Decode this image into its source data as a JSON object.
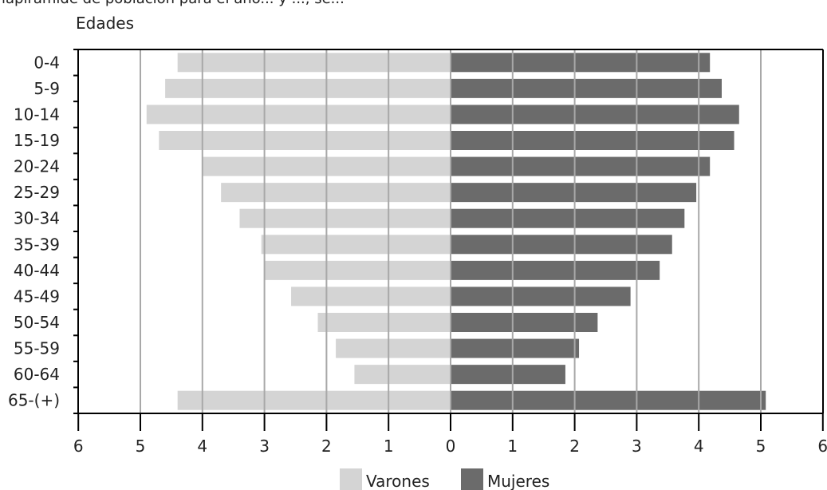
{
  "clipped_text": "lapiramide de poblacion para el año... y ..., se...",
  "chart_data": {
    "type": "bar",
    "ylabel": "Edades",
    "categories": [
      "0-4",
      "5-9",
      "10-14",
      "15-19",
      "20-24",
      "25-29",
      "30-34",
      "35-39",
      "40-44",
      "45-49",
      "50-54",
      "55-59",
      "60-64",
      "65-(+)"
    ],
    "series": [
      {
        "name": "Varones",
        "color": "#d4d4d4",
        "values": [
          4.4,
          4.6,
          4.9,
          4.7,
          4.0,
          3.7,
          3.4,
          3.05,
          3.0,
          2.57,
          2.14,
          1.85,
          1.55,
          4.4
        ]
      },
      {
        "name": "Mujeres",
        "color": "#6b6b6b",
        "values": [
          4.18,
          4.37,
          4.65,
          4.57,
          4.18,
          3.96,
          3.77,
          3.57,
          3.37,
          2.9,
          2.37,
          2.07,
          1.85,
          5.08
        ]
      }
    ],
    "xlim": [
      -6,
      6
    ],
    "xticks": [
      "6",
      "5",
      "4",
      "3",
      "2",
      "1",
      "0",
      "1",
      "2",
      "3",
      "4",
      "5",
      "6"
    ],
    "grid": true,
    "legend_position": "bottom"
  }
}
